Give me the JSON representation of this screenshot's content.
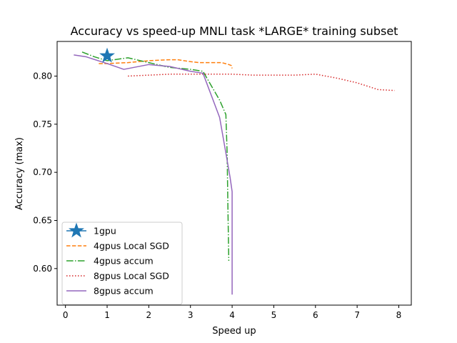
{
  "chart_data": {
    "type": "line",
    "title": "Accuracy vs speed-up MNLI task *LARGE* training subset",
    "xlabel": "Speed up",
    "ylabel": "Accuracy (max)",
    "xlim": [
      -0.2,
      8.3
    ],
    "ylim": [
      0.562,
      0.836
    ],
    "xticks": [
      0,
      1,
      2,
      3,
      4,
      5,
      6,
      7,
      8
    ],
    "xtick_labels": [
      "0",
      "1",
      "2",
      "3",
      "4",
      "5",
      "6",
      "7",
      "8"
    ],
    "yticks": [
      0.6,
      0.65,
      0.7,
      0.75,
      0.8
    ],
    "ytick_labels": [
      "0.60",
      "0.65",
      "0.70",
      "0.75",
      "0.80"
    ],
    "grid": false,
    "legend_position": "lower-left",
    "series": [
      {
        "name": "1gpu",
        "style": "star",
        "color": "#1f77b4",
        "x": [
          1.0
        ],
        "y": [
          0.821
        ]
      },
      {
        "name": "4gpus Local SGD",
        "style": "dashed",
        "color": "#ff7f0e",
        "x": [
          0.8,
          1.0,
          1.5,
          2.0,
          2.5,
          2.7,
          3.0,
          3.2,
          3.5,
          3.75,
          3.92,
          3.98,
          4.0
        ],
        "y": [
          0.813,
          0.813,
          0.814,
          0.816,
          0.817,
          0.817,
          0.815,
          0.814,
          0.814,
          0.814,
          0.812,
          0.811,
          0.808
        ]
      },
      {
        "name": "4gpus accum",
        "style": "dashdot",
        "color": "#2ca02c",
        "x": [
          0.4,
          0.7,
          1.0,
          1.5,
          2.0,
          2.5,
          3.0,
          3.3,
          3.5,
          3.7,
          3.8,
          3.85,
          3.88,
          3.9,
          3.92
        ],
        "y": [
          0.825,
          0.82,
          0.816,
          0.819,
          0.814,
          0.809,
          0.807,
          0.805,
          0.79,
          0.775,
          0.765,
          0.76,
          0.72,
          0.66,
          0.608
        ]
      },
      {
        "name": "8gpus Local SGD",
        "style": "dotted",
        "color": "#d62728",
        "x": [
          1.5,
          2.0,
          2.5,
          3.0,
          3.5,
          4.0,
          4.5,
          5.0,
          5.5,
          6.0,
          6.5,
          7.0,
          7.5,
          7.9
        ],
        "y": [
          0.8,
          0.801,
          0.802,
          0.802,
          0.802,
          0.802,
          0.801,
          0.801,
          0.801,
          0.802,
          0.798,
          0.793,
          0.786,
          0.785
        ]
      },
      {
        "name": "8gpus accum",
        "style": "solid",
        "color": "#9467bd",
        "x": [
          0.2,
          0.5,
          1.0,
          1.4,
          2.0,
          2.5,
          3.0,
          3.3,
          3.5,
          3.7,
          3.85,
          3.95,
          4.0,
          4.0
        ],
        "y": [
          0.822,
          0.82,
          0.813,
          0.807,
          0.812,
          0.81,
          0.805,
          0.803,
          0.78,
          0.757,
          0.72,
          0.695,
          0.68,
          0.573
        ]
      }
    ]
  }
}
